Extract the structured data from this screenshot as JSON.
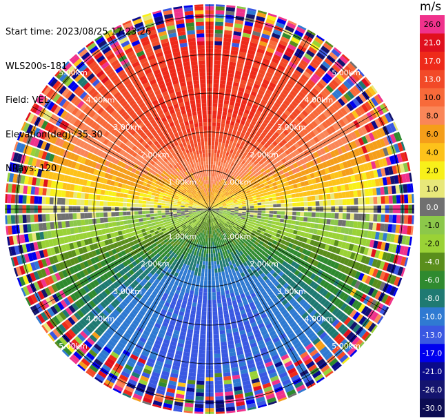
{
  "header": {
    "start_time": "Start time: 2023/08/25 17:23:26",
    "instrument": "WLS200s-181",
    "field": "Field: VEL",
    "elevation": "Elevation(deg): 35.30",
    "nrays": "NRays: 120"
  },
  "chart_data": {
    "type": "heatmap",
    "projection": "polar PPI scan",
    "field": "VEL",
    "units": "m/s",
    "n_rays": 120,
    "range_rings_km": [
      1.0,
      2.0,
      3.0,
      4.0,
      5.0
    ],
    "ring_labels": [
      "1.00km",
      "2.00km",
      "3.00km",
      "4.00km",
      "5.00km"
    ],
    "max_range_km": 5.3,
    "spokes_deg": [
      0,
      30,
      60,
      90,
      120,
      150,
      180,
      210,
      240,
      270,
      300,
      330
    ],
    "colorbar": {
      "title": "m/s",
      "levels": [
        {
          "label": "26.0",
          "color": "#f0328c"
        },
        {
          "label": "21.0",
          "color": "#e0101e"
        },
        {
          "label": "17.0",
          "color": "#ee2a1a"
        },
        {
          "label": "13.0",
          "color": "#f24a28"
        },
        {
          "label": "10.0",
          "color": "#f86a3a"
        },
        {
          "label": "8.0",
          "color": "#fa8658"
        },
        {
          "label": "6.0",
          "color": "#f59e1a"
        },
        {
          "label": "4.0",
          "color": "#fdc21a"
        },
        {
          "label": "2.0",
          "color": "#f8f01a"
        },
        {
          "label": "1.0",
          "color": "#e8e87a"
        },
        {
          "label": "0.0",
          "color": "#707070"
        },
        {
          "label": "-1.0",
          "color": "#8cc84a"
        },
        {
          "label": "-2.0",
          "color": "#9ad236"
        },
        {
          "label": "-4.0",
          "color": "#5a8e1c"
        },
        {
          "label": "-6.0",
          "color": "#2f8a2f"
        },
        {
          "label": "-8.0",
          "color": "#1f7a72"
        },
        {
          "label": "-10.0",
          "color": "#2f7ad2"
        },
        {
          "label": "-13.0",
          "color": "#3a58e2"
        },
        {
          "label": "-17.0",
          "color": "#0000ee"
        },
        {
          "label": "-21.0",
          "color": "#0a0a8a"
        },
        {
          "label": "-26.0",
          "color": "#14146e"
        },
        {
          "label": "-30.0",
          "color": "#0c0c52"
        }
      ]
    },
    "velocity_pattern": {
      "near_zero_azimuth_deg": [
        90,
        270
      ],
      "approx_peak_abs_ms": 14,
      "noise_begins_km": 4.2
    }
  }
}
